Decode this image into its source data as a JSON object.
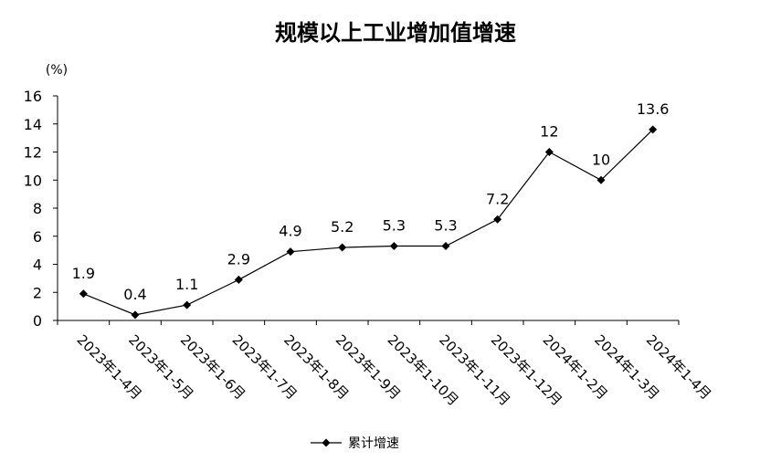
{
  "chart_data": {
    "type": "line",
    "title": "规模以上工业增加值增速",
    "unit_label": "(%)",
    "categories": [
      "2023年1-4月",
      "2023年1-5月",
      "2023年1-6月",
      "2023年1-7月",
      "2023年1-8月",
      "2023年1-9月",
      "2023年1-10月",
      "2023年1-11月",
      "2023年1-12月",
      "2024年1-2月",
      "2024年1-3月",
      "2024年1-4月"
    ],
    "series": [
      {
        "name": "累计增速",
        "values": [
          1.9,
          0.4,
          1.1,
          2.9,
          4.9,
          5.2,
          5.3,
          5.3,
          7.2,
          12,
          10,
          13.6
        ]
      }
    ],
    "data_labels": [
      "1.9",
      "0.4",
      "1.1",
      "2.9",
      "4.9",
      "5.2",
      "5.3",
      "5.3",
      "7.2",
      "12",
      "10",
      "13.6"
    ],
    "yticks": [
      0,
      2,
      4,
      6,
      8,
      10,
      12,
      14,
      16
    ],
    "ylim": [
      0,
      16
    ],
    "grid": false,
    "legend_position": "bottom",
    "line_color": "#000000",
    "marker": "diamond"
  }
}
